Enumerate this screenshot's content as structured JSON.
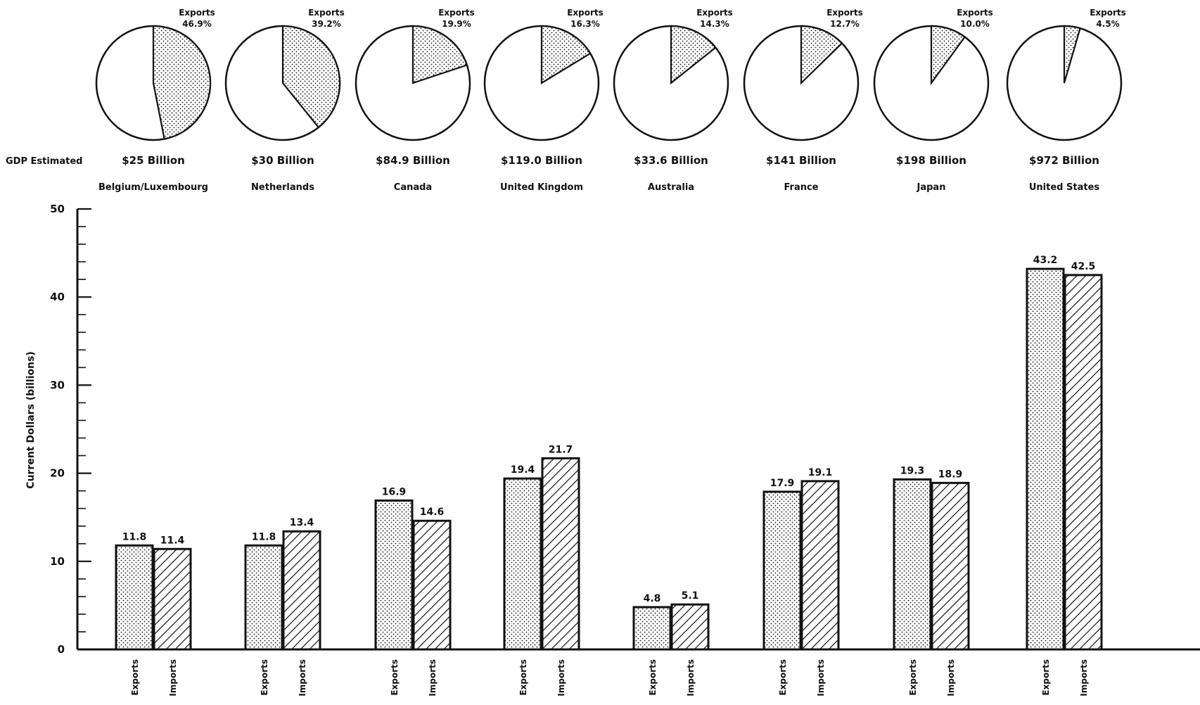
{
  "chart_data": {
    "type": "bar",
    "row_label": "GDP Estimated",
    "ylabel": "Current Dollars (billions)",
    "ylim": [
      0,
      50
    ],
    "yticks": [
      "0",
      "10",
      "20",
      "30",
      "40",
      "50"
    ],
    "series": [
      {
        "name": "Exports",
        "pattern": "dots"
      },
      {
        "name": "Imports",
        "pattern": "hatch"
      }
    ],
    "pie_label": "Exports",
    "countries": [
      {
        "name": "Belgium/Luxembourg",
        "gdp": "$25 Billion",
        "export_share_label": "46.9%",
        "export_share": 46.9,
        "exports": 11.8,
        "imports": 11.4,
        "exports_label": "11.8",
        "imports_label": "11.4"
      },
      {
        "name": "Netherlands",
        "gdp": "$30 Billion",
        "export_share_label": "39.2%",
        "export_share": 39.2,
        "exports": 11.8,
        "imports": 13.4,
        "exports_label": "11.8",
        "imports_label": "13.4"
      },
      {
        "name": "Canada",
        "gdp": "$84.9 Billion",
        "export_share_label": "19.9%",
        "export_share": 19.9,
        "exports": 16.9,
        "imports": 14.6,
        "exports_label": "16.9",
        "imports_label": "14.6"
      },
      {
        "name": "United Kingdom",
        "gdp": "$119.0 Billion",
        "export_share_label": "16.3%",
        "export_share": 16.3,
        "exports": 19.4,
        "imports": 21.7,
        "exports_label": "19.4",
        "imports_label": "21.7"
      },
      {
        "name": "Australia",
        "gdp": "$33.6 Billion",
        "export_share_label": "14.3%",
        "export_share": 14.3,
        "exports": 4.8,
        "imports": 5.1,
        "exports_label": "4.8",
        "imports_label": "5.1"
      },
      {
        "name": "France",
        "gdp": "$141 Billion",
        "export_share_label": "12.7%",
        "export_share": 12.7,
        "exports": 17.9,
        "imports": 19.1,
        "exports_label": "17.9",
        "imports_label": "19.1"
      },
      {
        "name": "Japan",
        "gdp": "$198 Billion",
        "export_share_label": "10.0%",
        "export_share": 10.0,
        "exports": 19.3,
        "imports": 18.9,
        "exports_label": "19.3",
        "imports_label": "18.9"
      },
      {
        "name": "United States",
        "gdp": "$972 Billion",
        "export_share_label": "4.5%",
        "export_share": 4.5,
        "exports": 43.2,
        "imports": 42.5,
        "exports_label": "43.2",
        "imports_label": "42.5"
      }
    ],
    "colors": {
      "ink": "#111111",
      "paper": "#ffffff"
    }
  }
}
